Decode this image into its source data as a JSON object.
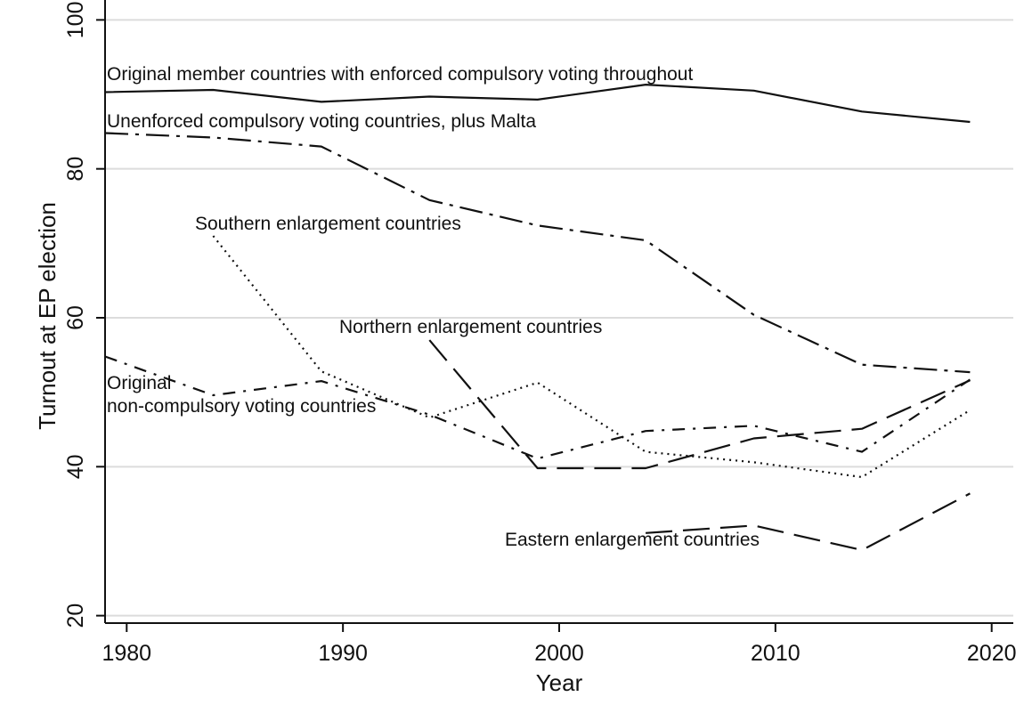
{
  "chart_data": {
    "type": "line",
    "title": "",
    "xlabel": "Year",
    "ylabel": "Turnout at EP election",
    "xlim": [
      1979,
      2021
    ],
    "ylim": [
      19,
      101
    ],
    "xticks": [
      1980,
      1990,
      2000,
      2010,
      2020
    ],
    "yticks": [
      20,
      40,
      60,
      80,
      100
    ],
    "grid": true,
    "colors": {
      "line": "#111111",
      "grid": "#dcdcdc",
      "axis": "#111111",
      "background": "#ffffff"
    },
    "series": [
      {
        "name": "Original member countries with enforced compulsory voting throughout",
        "style": "solid",
        "x": [
          1979,
          1984,
          1989,
          1994,
          1999,
          2004,
          2009,
          2014,
          2019
        ],
        "y": [
          90.3,
          90.6,
          89.0,
          89.7,
          89.3,
          91.3,
          90.5,
          87.7,
          86.3
        ]
      },
      {
        "name": "Unenforced compulsory voting countries, plus Malta",
        "style": "dashdot",
        "x": [
          1979,
          1984,
          1989,
          1994,
          1999,
          2004,
          2009,
          2014,
          2019
        ],
        "y": [
          84.8,
          84.2,
          83.0,
          75.8,
          72.4,
          70.4,
          60.4,
          53.7,
          52.7
        ]
      },
      {
        "name": "Southern enlargement countries",
        "style": "dotted",
        "x": [
          1984,
          1989,
          1994,
          1999,
          2004,
          2009,
          2014,
          2019
        ],
        "y": [
          71.0,
          52.8,
          46.6,
          51.3,
          42.0,
          40.6,
          38.6,
          47.6
        ]
      },
      {
        "name": "Northern enlargement countries",
        "style": "longdash",
        "x": [
          1994,
          1999,
          2004,
          2009,
          2014,
          2019
        ],
        "y": [
          57.0,
          39.8,
          39.8,
          43.8,
          45.1,
          51.6
        ]
      },
      {
        "name": "Original\nnon-compulsory voting countries",
        "style": "dashdotsparse",
        "x": [
          1979,
          1984,
          1989,
          1994,
          1999,
          2004,
          2009,
          2014,
          2019
        ],
        "y": [
          54.8,
          49.6,
          51.5,
          47.0,
          41.1,
          44.8,
          45.5,
          42.0,
          51.7
        ]
      },
      {
        "name": "Eastern enlargement countries",
        "style": "longdash",
        "x": [
          2004,
          2009,
          2014,
          2019
        ],
        "y": [
          31.1,
          32.1,
          28.8,
          36.4
        ]
      }
    ]
  }
}
